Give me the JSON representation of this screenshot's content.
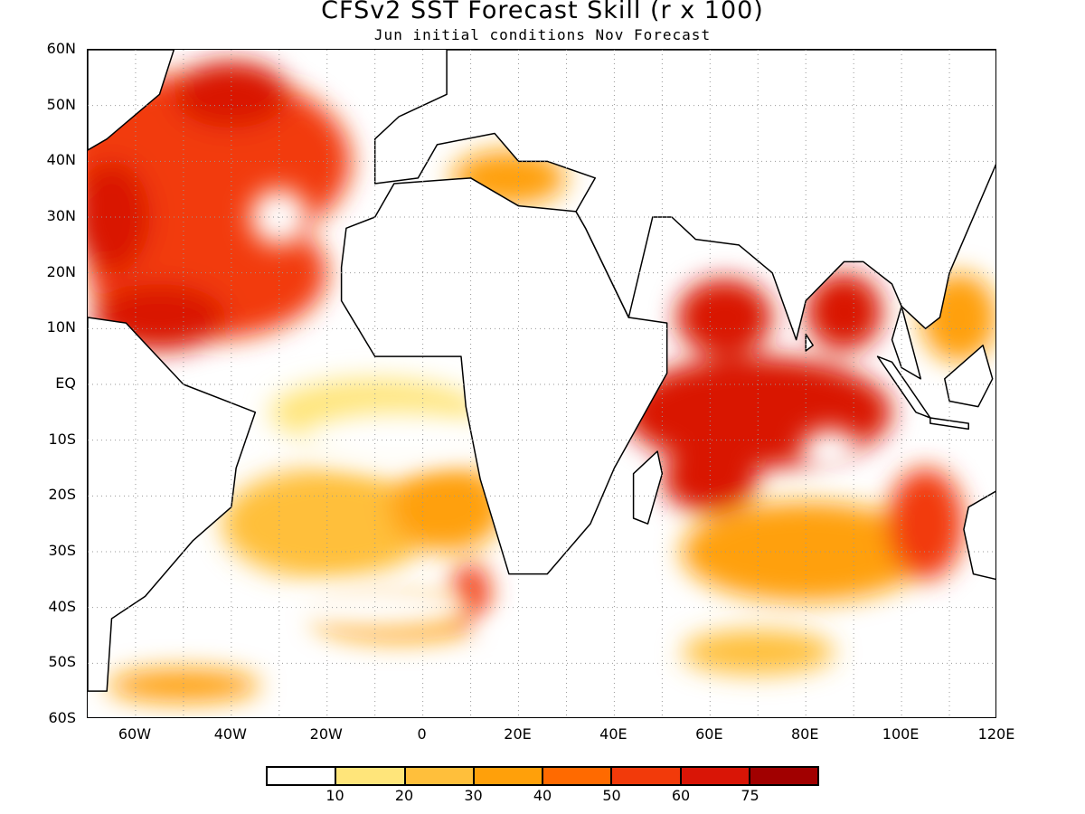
{
  "title": "CFSv2 SST Forecast Skill (r x 100)",
  "subtitle": "Jun initial conditions  Nov Forecast",
  "map": {
    "lon_range": [
      -70,
      120
    ],
    "lat_range": [
      -60,
      60
    ],
    "gridlines": "dotted",
    "lat_labels": [
      "60N",
      "50N",
      "40N",
      "30N",
      "20N",
      "10N",
      "EQ",
      "10S",
      "20S",
      "30S",
      "40S",
      "50S",
      "60S"
    ],
    "lon_labels": [
      "60W",
      "40W",
      "20W",
      "0",
      "20E",
      "40E",
      "60E",
      "80E",
      "100E",
      "120E"
    ]
  },
  "colorbar": {
    "colors": [
      "#ffffff",
      "#ffe57a",
      "#ffbf3b",
      "#ffa00a",
      "#ff6a00",
      "#f23a0a",
      "#d91506",
      "#a10000"
    ],
    "labels": [
      "10",
      "20",
      "30",
      "40",
      "50",
      "60",
      "75"
    ]
  },
  "regions": [
    {
      "id": "north-atlantic",
      "lon": -45,
      "lat": 40,
      "rx": 30,
      "ry": 16,
      "level": 5
    },
    {
      "id": "subtropical-atlantic",
      "lon": -45,
      "lat": 20,
      "rx": 25,
      "ry": 12,
      "level": 5
    },
    {
      "id": "west-atlantic-margin",
      "lon": -65,
      "lat": 30,
      "rx": 8,
      "ry": 10,
      "level": 6
    },
    {
      "id": "nw-atlantic-core",
      "lon": -40,
      "lat": 52,
      "rx": 12,
      "ry": 6,
      "level": 6
    },
    {
      "id": "caribbean",
      "lon": -55,
      "lat": 12,
      "rx": 14,
      "ry": 6,
      "level": 6
    },
    {
      "id": "tropical-atlantic",
      "lon": -10,
      "lat": -5,
      "rx": 22,
      "ry": 6,
      "level": 1
    },
    {
      "id": "south-atlantic",
      "lon": -20,
      "lat": -25,
      "rx": 22,
      "ry": 10,
      "level": 2
    },
    {
      "id": "south-atlantic-east",
      "lon": 5,
      "lat": -22,
      "rx": 12,
      "ry": 8,
      "level": 3
    },
    {
      "id": "southern-ocean-1",
      "lon": -5,
      "lat": -42,
      "rx": 18,
      "ry": 4,
      "level": 3
    },
    {
      "id": "southern-ocean-2",
      "lon": 10,
      "lat": -38,
      "rx": 4,
      "ry": 6,
      "level": 5
    },
    {
      "id": "southern-ocean-3",
      "lon": -50,
      "lat": -54,
      "rx": 16,
      "ry": 3,
      "level": 3
    },
    {
      "id": "mediterranean",
      "lon": 18,
      "lat": 37,
      "rx": 12,
      "ry": 5,
      "level": 3
    },
    {
      "id": "arabian-sea",
      "lon": 63,
      "lat": 12,
      "rx": 10,
      "ry": 7,
      "level": 6
    },
    {
      "id": "bay-of-bengal",
      "lon": 88,
      "lat": 13,
      "rx": 8,
      "ry": 7,
      "level": 6
    },
    {
      "id": "tropical-indian",
      "lon": 70,
      "lat": -5,
      "rx": 28,
      "ry": 10,
      "level": 6
    },
    {
      "id": "sw-indian",
      "lon": 60,
      "lat": -17,
      "rx": 10,
      "ry": 6,
      "level": 6
    },
    {
      "id": "south-indian",
      "lon": 80,
      "lat": -30,
      "rx": 26,
      "ry": 9,
      "level": 3
    },
    {
      "id": "southeast-indian",
      "lon": 105,
      "lat": -25,
      "rx": 8,
      "ry": 10,
      "level": 5
    },
    {
      "id": "south-china-sea",
      "lon": 112,
      "lat": 12,
      "rx": 8,
      "ry": 8,
      "level": 3
    },
    {
      "id": "southern-indian-ocean",
      "lon": 70,
      "lat": -48,
      "rx": 16,
      "ry": 4,
      "level": 2
    }
  ],
  "blanks": [
    {
      "lon": -5,
      "lat": -10,
      "rx": 20,
      "ry": 5
    },
    {
      "lon": -10,
      "lat": -40,
      "rx": 20,
      "ry": 4
    },
    {
      "lon": 30,
      "lat": -45,
      "rx": 20,
      "ry": 6
    },
    {
      "lon": 85,
      "lat": -12,
      "rx": 6,
      "ry": 4
    },
    {
      "lon": -30,
      "lat": 30,
      "rx": 6,
      "ry": 5
    }
  ],
  "landmasses": [
    {
      "id": "africa",
      "pts": [
        [
          -17,
          21
        ],
        [
          -16,
          28
        ],
        [
          -10,
          30
        ],
        [
          -6,
          36
        ],
        [
          10,
          37
        ],
        [
          20,
          32
        ],
        [
          32,
          31
        ],
        [
          34,
          28
        ],
        [
          43,
          12
        ],
        [
          51,
          11
        ],
        [
          51,
          2
        ],
        [
          40,
          -15
        ],
        [
          35,
          -25
        ],
        [
          26,
          -34
        ],
        [
          18,
          -34
        ],
        [
          12,
          -17
        ],
        [
          9,
          -4
        ],
        [
          8,
          5
        ],
        [
          -10,
          5
        ],
        [
          -17,
          15
        ]
      ]
    },
    {
      "id": "europe-asia",
      "pts": [
        [
          -10,
          36
        ],
        [
          -10,
          44
        ],
        [
          -5,
          48
        ],
        [
          5,
          52
        ],
        [
          5,
          60
        ],
        [
          120,
          60
        ],
        [
          120,
          40
        ],
        [
          110,
          20
        ],
        [
          108,
          12
        ],
        [
          105,
          10
        ],
        [
          100,
          14
        ],
        [
          98,
          18
        ],
        [
          92,
          22
        ],
        [
          88,
          22
        ],
        [
          80,
          15
        ],
        [
          78,
          8
        ],
        [
          73,
          20
        ],
        [
          66,
          25
        ],
        [
          57,
          26
        ],
        [
          52,
          30
        ],
        [
          48,
          30
        ],
        [
          43,
          12
        ],
        [
          34,
          28
        ],
        [
          32,
          31
        ],
        [
          36,
          37
        ],
        [
          26,
          40
        ],
        [
          20,
          40
        ],
        [
          15,
          45
        ],
        [
          3,
          43
        ],
        [
          -1,
          37
        ]
      ]
    },
    {
      "id": "north-america",
      "pts": [
        [
          -70,
          60
        ],
        [
          -52,
          60
        ],
        [
          -55,
          52
        ],
        [
          -66,
          44
        ],
        [
          -70,
          42
        ],
        [
          -70,
          60
        ]
      ]
    },
    {
      "id": "south-america",
      "pts": [
        [
          -70,
          12
        ],
        [
          -62,
          11
        ],
        [
          -50,
          0
        ],
        [
          -35,
          -5
        ],
        [
          -39,
          -15
        ],
        [
          -40,
          -22
        ],
        [
          -48,
          -28
        ],
        [
          -58,
          -38
        ],
        [
          -65,
          -42
        ],
        [
          -66,
          -55
        ],
        [
          -70,
          -55
        ]
      ]
    },
    {
      "id": "madagascar",
      "pts": [
        [
          49,
          -12
        ],
        [
          50,
          -16
        ],
        [
          47,
          -25
        ],
        [
          44,
          -24
        ],
        [
          44,
          -16
        ]
      ]
    },
    {
      "id": "indochina-malaysia",
      "pts": [
        [
          100,
          14
        ],
        [
          104,
          1
        ],
        [
          100,
          3
        ],
        [
          98,
          8
        ]
      ]
    },
    {
      "id": "sumatra",
      "pts": [
        [
          95,
          5
        ],
        [
          98,
          4
        ],
        [
          106,
          -6
        ],
        [
          103,
          -5
        ]
      ]
    },
    {
      "id": "borneo",
      "pts": [
        [
          109,
          1
        ],
        [
          117,
          7
        ],
        [
          119,
          1
        ],
        [
          116,
          -4
        ],
        [
          110,
          -3
        ]
      ]
    },
    {
      "id": "java",
      "pts": [
        [
          106,
          -6
        ],
        [
          114,
          -7
        ],
        [
          114,
          -8
        ],
        [
          106,
          -7
        ]
      ]
    },
    {
      "id": "australia",
      "pts": [
        [
          114,
          -22
        ],
        [
          120,
          -19
        ],
        [
          120,
          -35
        ],
        [
          115,
          -34
        ],
        [
          113,
          -26
        ]
      ]
    },
    {
      "id": "sri-lanka",
      "pts": [
        [
          80,
          9
        ],
        [
          81.5,
          7
        ],
        [
          80,
          6
        ]
      ]
    }
  ]
}
